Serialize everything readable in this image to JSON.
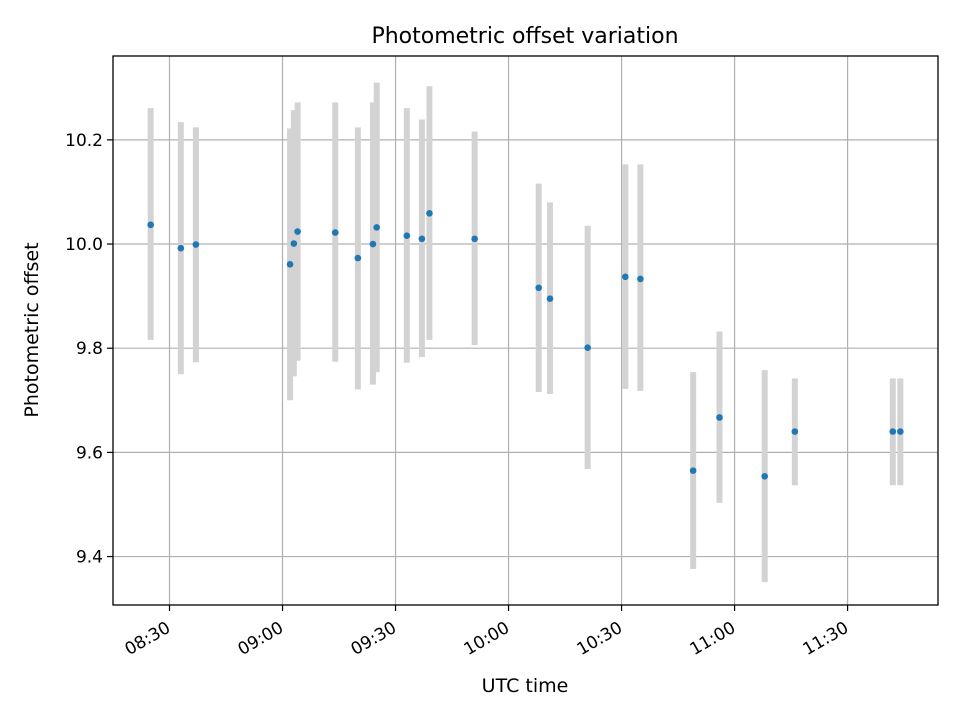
{
  "chart_data": {
    "type": "scatter",
    "title": "Photometric offset variation",
    "xlabel": "UTC time",
    "ylabel": "Photometric offset",
    "x_tick_labels": [
      "08:30",
      "09:00",
      "09:30",
      "10:00",
      "10:30",
      "11:00",
      "11:30"
    ],
    "y_tick_labels": [
      "9.4",
      "9.6",
      "9.8",
      "10.0",
      "10.2"
    ],
    "x_ticks": [
      "08:30",
      "09:00",
      "09:30",
      "10:00",
      "10:30",
      "11:00",
      "11:30"
    ],
    "y_ticks": [
      9.4,
      9.6,
      9.8,
      10.0,
      10.2
    ],
    "xlim": [
      "08:15",
      "11:54"
    ],
    "ylim": [
      9.307,
      10.361
    ],
    "grid": true,
    "colors": {
      "point": "#1f77b4",
      "errorbar": "#d3d3d3",
      "grid": "#b0b0b0"
    },
    "points": [
      {
        "x": "08:25",
        "y": 10.037,
        "ylo": 9.816,
        "yhi": 10.261
      },
      {
        "x": "08:33",
        "y": 9.992,
        "ylo": 9.75,
        "yhi": 10.234
      },
      {
        "x": "08:37",
        "y": 9.999,
        "ylo": 9.773,
        "yhi": 10.224
      },
      {
        "x": "09:02",
        "y": 9.961,
        "ylo": 9.7,
        "yhi": 10.222
      },
      {
        "x": "09:03",
        "y": 10.001,
        "ylo": 9.746,
        "yhi": 10.257
      },
      {
        "x": "09:04",
        "y": 10.024,
        "ylo": 9.776,
        "yhi": 10.272
      },
      {
        "x": "09:14",
        "y": 10.022,
        "ylo": 9.774,
        "yhi": 10.272
      },
      {
        "x": "09:20",
        "y": 9.973,
        "ylo": 9.721,
        "yhi": 10.224
      },
      {
        "x": "09:24",
        "y": 10.0,
        "ylo": 9.73,
        "yhi": 10.272
      },
      {
        "x": "09:25",
        "y": 10.032,
        "ylo": 9.754,
        "yhi": 10.31
      },
      {
        "x": "09:33",
        "y": 10.016,
        "ylo": 9.772,
        "yhi": 10.261
      },
      {
        "x": "09:37",
        "y": 10.01,
        "ylo": 9.783,
        "yhi": 10.239
      },
      {
        "x": "09:39",
        "y": 10.059,
        "ylo": 9.816,
        "yhi": 10.303
      },
      {
        "x": "09:51",
        "y": 10.01,
        "ylo": 9.806,
        "yhi": 10.216
      },
      {
        "x": "10:08",
        "y": 9.916,
        "ylo": 9.716,
        "yhi": 10.116
      },
      {
        "x": "10:11",
        "y": 9.895,
        "ylo": 9.712,
        "yhi": 10.08
      },
      {
        "x": "10:21",
        "y": 9.801,
        "ylo": 9.568,
        "yhi": 10.035
      },
      {
        "x": "10:31",
        "y": 9.937,
        "ylo": 9.722,
        "yhi": 10.153
      },
      {
        "x": "10:35",
        "y": 9.933,
        "ylo": 9.718,
        "yhi": 10.153
      },
      {
        "x": "10:49",
        "y": 9.565,
        "ylo": 9.376,
        "yhi": 9.754
      },
      {
        "x": "10:56",
        "y": 9.667,
        "ylo": 9.503,
        "yhi": 9.832
      },
      {
        "x": "11:08",
        "y": 9.554,
        "ylo": 9.351,
        "yhi": 9.758
      },
      {
        "x": "11:16",
        "y": 9.64,
        "ylo": 9.537,
        "yhi": 9.742
      },
      {
        "x": "11:42",
        "y": 9.64,
        "ylo": 9.537,
        "yhi": 9.742
      },
      {
        "x": "11:44",
        "y": 9.64,
        "ylo": 9.537,
        "yhi": 9.742
      }
    ]
  }
}
